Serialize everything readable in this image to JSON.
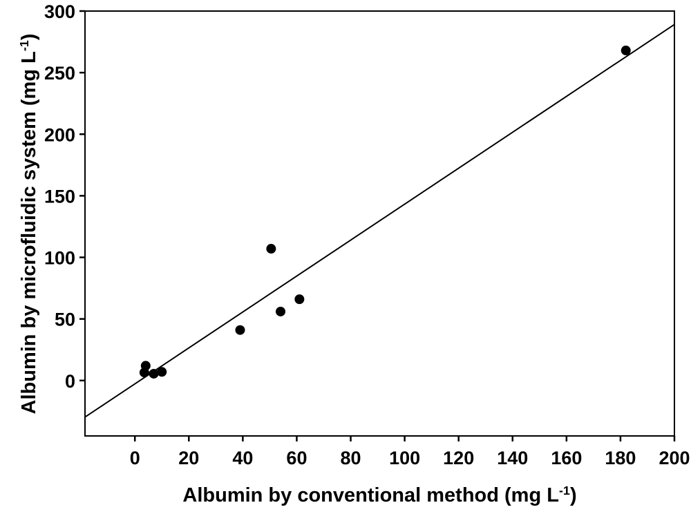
{
  "figure": {
    "background_color": "#ffffff",
    "foreground_color": "#000000"
  },
  "chart_data": {
    "type": "scatter",
    "title": "",
    "xlabel": "Albumin by conventional method (mg L⁻¹)",
    "ylabel": "Albumin by microfluidic system (mg L⁻¹)",
    "xlabel_parts": {
      "main": "Albumin by conventional method (mg L",
      "sup": "-1",
      "close": ")"
    },
    "ylabel_parts": {
      "main": "Albumin by microfluidic system (mg L",
      "sup": "-1",
      "close": ")"
    },
    "xlim": [
      -18.5,
      200
    ],
    "ylim": [
      -45,
      300
    ],
    "xticks": [
      0,
      20,
      40,
      60,
      80,
      100,
      120,
      140,
      160,
      180,
      200
    ],
    "yticks": [
      0,
      50,
      100,
      150,
      200,
      250,
      300
    ],
    "grid": false,
    "legend": "none",
    "marker": {
      "shape": "circle",
      "color": "#000000",
      "radius_px": 7
    },
    "points": [
      {
        "x": 4,
        "y": 12
      },
      {
        "x": 3.5,
        "y": 6.5
      },
      {
        "x": 7,
        "y": 5.5
      },
      {
        "x": 10,
        "y": 7
      },
      {
        "x": 39,
        "y": 41
      },
      {
        "x": 50.5,
        "y": 107
      },
      {
        "x": 54,
        "y": 56
      },
      {
        "x": 61,
        "y": 66
      },
      {
        "x": 182,
        "y": 268
      }
    ],
    "fit_line": {
      "slope": 1.459,
      "intercept": -2.7,
      "x_start": -18.5,
      "x_end": 200
    }
  }
}
